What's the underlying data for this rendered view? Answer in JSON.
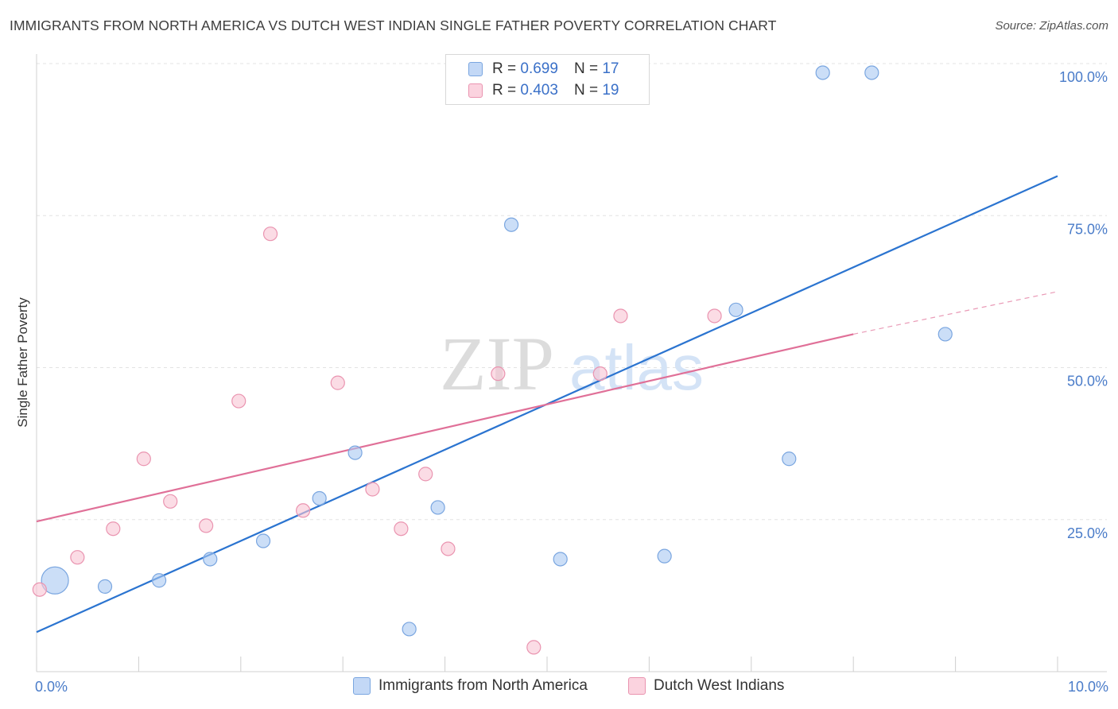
{
  "title": "IMMIGRANTS FROM NORTH AMERICA VS DUTCH WEST INDIAN SINGLE FATHER POVERTY CORRELATION CHART",
  "source": "Source: ZipAtlas.com",
  "watermark": {
    "zip": "ZIP",
    "atlas": "atlas"
  },
  "legend": {
    "r_label": "R =",
    "n_label": "N =",
    "series": [
      {
        "r": "0.699",
        "n": "17"
      },
      {
        "r": "0.403",
        "n": "19"
      }
    ]
  },
  "chart_data": {
    "type": "scatter",
    "title": "IMMIGRANTS FROM NORTH AMERICA VS DUTCH WEST INDIAN SINGLE FATHER POVERTY CORRELATION CHART",
    "xlabel": "",
    "ylabel": "Single Father Poverty",
    "xlim": [
      0,
      10
    ],
    "ylim": [
      0,
      100
    ],
    "x_tick_labels": [
      {
        "value": 0,
        "label": "0.0%"
      },
      {
        "value": 10,
        "label": "10.0%"
      }
    ],
    "y_tick_labels": [
      {
        "value": 25,
        "label": "25.0%"
      },
      {
        "value": 50,
        "label": "50.0%"
      },
      {
        "value": 75,
        "label": "75.0%"
      },
      {
        "value": 100,
        "label": "100.0%"
      }
    ],
    "series": [
      {
        "name": "Immigrants from North America",
        "color": "#a9c8f2",
        "stroke": "#7aa6e0",
        "line_color": "#2b74d0",
        "trend": {
          "x0": 0,
          "y0": 6.5,
          "x1": 10,
          "y1": 81.5
        },
        "points": [
          {
            "x": 0.18,
            "y": 15.0,
            "big": true
          },
          {
            "x": 0.67,
            "y": 14.0
          },
          {
            "x": 1.2,
            "y": 15.0
          },
          {
            "x": 1.7,
            "y": 18.5
          },
          {
            "x": 2.22,
            "y": 21.5
          },
          {
            "x": 2.77,
            "y": 28.5
          },
          {
            "x": 3.12,
            "y": 36.0
          },
          {
            "x": 3.65,
            "y": 7.0
          },
          {
            "x": 3.93,
            "y": 27.0
          },
          {
            "x": 4.65,
            "y": 73.5
          },
          {
            "x": 5.13,
            "y": 18.5
          },
          {
            "x": 6.15,
            "y": 19.0
          },
          {
            "x": 6.85,
            "y": 59.5
          },
          {
            "x": 7.37,
            "y": 35.0
          },
          {
            "x": 7.7,
            "y": 98.5
          },
          {
            "x": 8.18,
            "y": 98.5
          },
          {
            "x": 8.9,
            "y": 55.5
          }
        ]
      },
      {
        "name": "Dutch West Indians",
        "color": "#f8c4d4",
        "stroke": "#ea94b0",
        "line_color": "#e07098",
        "trend": {
          "x0": 0,
          "y0": 24.7,
          "x1": 8.0,
          "y1": 55.5,
          "dash_to_x": 10,
          "dash_to_y": 62.5
        },
        "points": [
          {
            "x": 0.03,
            "y": 13.5
          },
          {
            "x": 0.4,
            "y": 18.8
          },
          {
            "x": 0.75,
            "y": 23.5
          },
          {
            "x": 1.05,
            "y": 35.0
          },
          {
            "x": 1.31,
            "y": 28.0
          },
          {
            "x": 1.66,
            "y": 24.0
          },
          {
            "x": 1.98,
            "y": 44.5
          },
          {
            "x": 2.29,
            "y": 72.0
          },
          {
            "x": 2.61,
            "y": 26.5
          },
          {
            "x": 2.95,
            "y": 47.5
          },
          {
            "x": 3.29,
            "y": 30.0
          },
          {
            "x": 3.57,
            "y": 23.5
          },
          {
            "x": 3.81,
            "y": 32.5
          },
          {
            "x": 4.03,
            "y": 20.2
          },
          {
            "x": 4.52,
            "y": 49.0
          },
          {
            "x": 4.87,
            "y": 4.0
          },
          {
            "x": 5.52,
            "y": 49.0
          },
          {
            "x": 5.72,
            "y": 58.5
          },
          {
            "x": 6.64,
            "y": 58.5
          }
        ]
      }
    ]
  }
}
